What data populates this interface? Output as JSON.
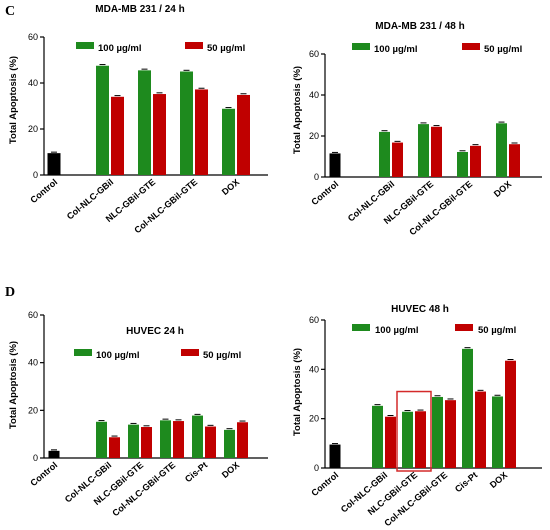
{
  "panel_labels": [
    "C",
    "D"
  ],
  "colors": {
    "control": "#000000",
    "series1": "#1e8a1e",
    "series2": "#c00000",
    "highlight": "#d42a2a"
  },
  "chart_data": [
    {
      "type": "bar",
      "title": "MDA-MB 231 / 24 h",
      "ylabel": "Total Apoptosis (%)",
      "ylim": [
        0,
        60
      ],
      "yticks": [
        0,
        20,
        40,
        60
      ],
      "categories": [
        "Control",
        "Col-NLC-GBil",
        "NLC-GBil-GTE",
        "Col-NLC-GBil-GTE",
        "DOX"
      ],
      "control_value": 9.5,
      "series": [
        {
          "name": "100 µg/ml",
          "values": [
            null,
            47.5,
            45.5,
            45,
            28.8
          ]
        },
        {
          "name": "50 µg/ml",
          "values": [
            null,
            34,
            35.2,
            37.2,
            34.8
          ]
        }
      ],
      "legend": "top"
    },
    {
      "type": "bar",
      "title": "MDA-MB 231 / 48 h",
      "ylabel": "Total Apoptosis (%)",
      "ylim": [
        0,
        60
      ],
      "yticks": [
        0,
        20,
        40,
        60
      ],
      "categories": [
        "Control",
        "Col-NLC-GBil",
        "NLC-GBil-GTE",
        "Col-NLC-GBil-GTE",
        "DOX"
      ],
      "control_value": 11.5,
      "series": [
        {
          "name": "100 µg/ml",
          "values": [
            null,
            22,
            25.8,
            12.2,
            26.2
          ]
        },
        {
          "name": "50 µg/ml",
          "values": [
            null,
            16.8,
            24.5,
            15.2,
            16
          ]
        }
      ],
      "legend": "top"
    },
    {
      "type": "bar",
      "title": "HUVEC 24 h",
      "ylabel": "Total Apoptosis (%)",
      "ylim": [
        0,
        60
      ],
      "yticks": [
        0,
        20,
        40,
        60
      ],
      "categories": [
        "Control",
        "Col-NLC-GBil",
        "NLC-GBil-GTE",
        "Col-NLC-GBil-GTE",
        "Cis-Pt",
        "DOX"
      ],
      "control_value": 3,
      "series": [
        {
          "name": "100 µg/ml",
          "values": [
            null,
            15.2,
            14,
            15.8,
            17.8,
            11.8
          ]
        },
        {
          "name": "50 µg/ml",
          "values": [
            null,
            8.7,
            13,
            15.5,
            13.2,
            15
          ]
        }
      ],
      "legend": "middle"
    },
    {
      "type": "bar",
      "title": "HUVEC 48 h",
      "ylabel": "Total Apoptosis (%)",
      "ylim": [
        0,
        60
      ],
      "yticks": [
        0,
        20,
        40,
        60
      ],
      "categories": [
        "Control",
        "Col-NLC-GBil",
        "NLC-GBil-GTE",
        "Col-NLC-GBil-GTE",
        "Cis-Pt",
        "DOX"
      ],
      "control_value": 9.5,
      "series": [
        {
          "name": "100 µg/ml",
          "values": [
            null,
            25.2,
            22.8,
            28.8,
            48.3,
            29
          ]
        },
        {
          "name": "50 µg/ml",
          "values": [
            null,
            20.8,
            23,
            27.5,
            31,
            43.5
          ]
        }
      ],
      "legend": "top",
      "highlighted_category": "NLC-GBil-GTE"
    }
  ]
}
